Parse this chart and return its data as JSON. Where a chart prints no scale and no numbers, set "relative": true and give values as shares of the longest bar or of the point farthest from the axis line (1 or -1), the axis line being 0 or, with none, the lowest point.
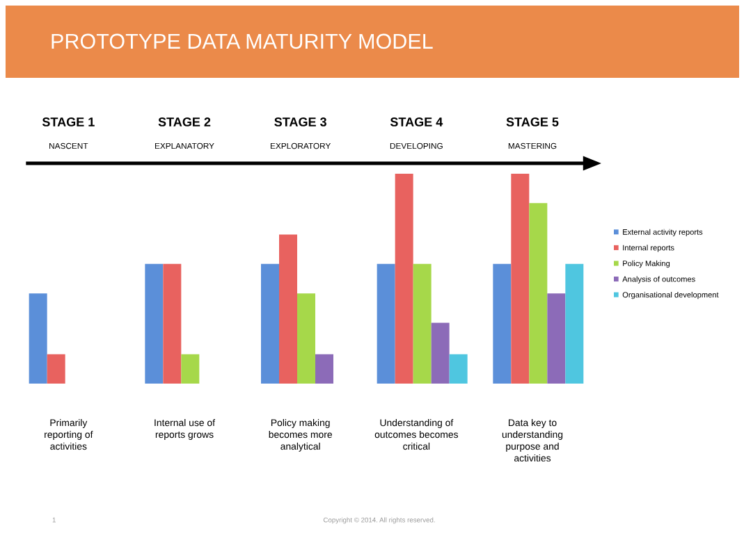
{
  "chart_data": {
    "type": "bar",
    "title": "PROTOTYPE DATA MATURITY MODEL",
    "relative": true,
    "categories": [
      "STAGE 1",
      "STAGE 2",
      "STAGE 3",
      "STAGE 4",
      "STAGE 5"
    ],
    "series": [
      {
        "name": "External activity reports",
        "color": "#5b8fd9",
        "values": [
          0.43,
          0.57,
          0.57,
          0.57,
          0.57
        ]
      },
      {
        "name": "Internal reports",
        "color": "#e8625f",
        "values": [
          0.14,
          0.57,
          0.71,
          1,
          1
        ]
      },
      {
        "name": "Policy Making",
        "color": "#a6d84a",
        "values": [
          null,
          0.14,
          0.43,
          0.57,
          0.86
        ]
      },
      {
        "name": "Analysis of outcomes",
        "color": "#8c6bb8",
        "values": [
          null,
          null,
          0.14,
          0.29,
          0.43
        ]
      },
      {
        "name": "Organisational development",
        "color": "#4fc6e0",
        "values": [
          null,
          null,
          null,
          0.14,
          0.57
        ]
      }
    ],
    "legend": "right",
    "annotations": [
      "NASCENT",
      "Primarily\nreporting of\nactivities",
      "EXPLANATORY",
      "Internal use of\nreports grows",
      "EXPLORATORY",
      "Policy making\nbecomes more\nanalytical",
      "DEVELOPING",
      "Understanding of\noutcomes becomes\ncritical",
      "MASTERING",
      "Data key to\nunderstanding\npurpose and\nactivities",
      "1",
      "Copyright © 2014. All rights reserved."
    ]
  }
}
